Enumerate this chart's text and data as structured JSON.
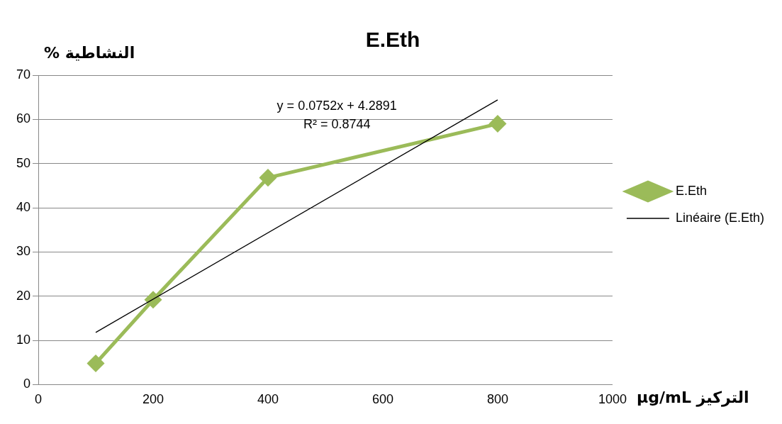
{
  "chart_data": {
    "type": "line",
    "title": "E.Eth",
    "xlabel": "التركيز µg/mL",
    "ylabel": "النشاطية %",
    "x": [
      100,
      200,
      400,
      800
    ],
    "series": [
      {
        "name": "E.Eth",
        "color": "#9bbb59",
        "values": [
          4.8,
          19.2,
          46.8,
          59.0
        ],
        "marker": "diamond"
      },
      {
        "name": "Linéaire (E.Eth)",
        "type": "line",
        "color": "#000000",
        "x": [
          100,
          800
        ],
        "values": [
          11.8,
          64.4
        ],
        "marker": "none"
      }
    ],
    "xlim": [
      0,
      1000
    ],
    "xticks": [
      0,
      200,
      400,
      600,
      800,
      1000
    ],
    "ylim": [
      0,
      70
    ],
    "yticks": [
      0,
      10,
      20,
      30,
      40,
      50,
      60,
      70
    ],
    "grid": "y",
    "legend": "right",
    "annotations": [
      "y = 0.0752x + 4.2891",
      "R² = 0.8744"
    ]
  }
}
